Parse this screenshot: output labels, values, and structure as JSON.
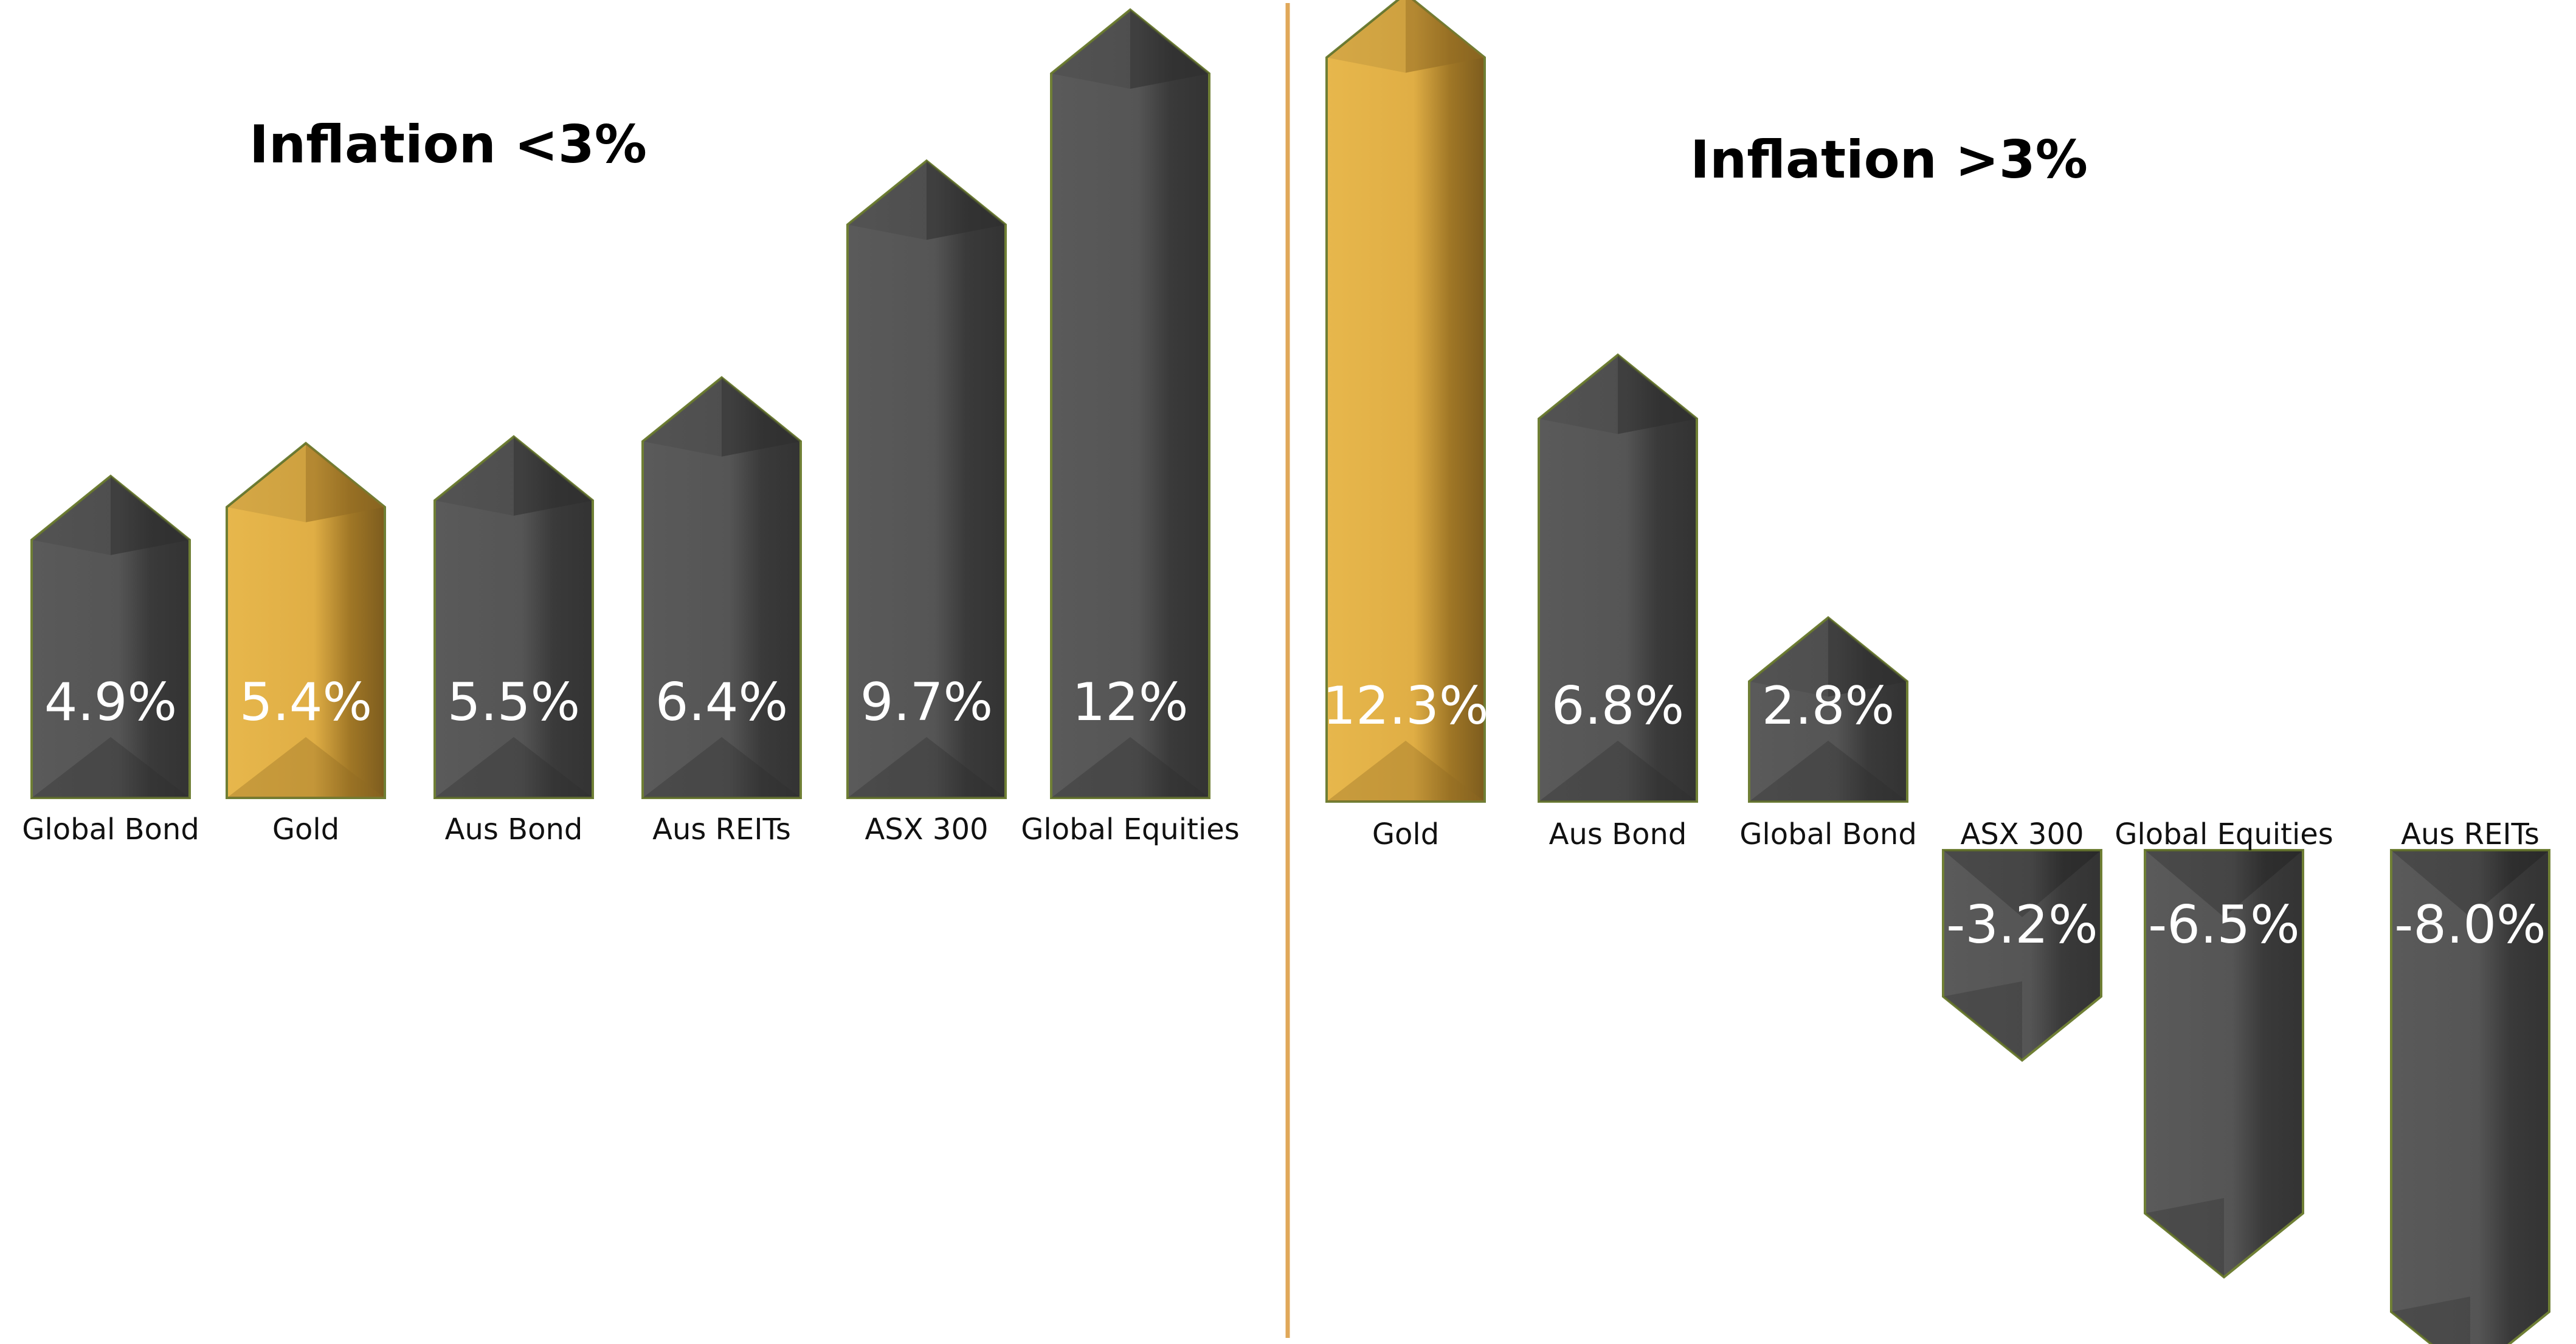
{
  "chart_data": [
    {
      "type": "bar",
      "title": "Inflation <3%",
      "categories": [
        "Global Bond",
        "Gold",
        "Aus Bond",
        "Aus REITs",
        "ASX 300",
        "Global Equities"
      ],
      "values": [
        4.9,
        5.4,
        5.5,
        6.4,
        9.7,
        12
      ],
      "value_labels": [
        "4.9%",
        "5.4%",
        "5.5%",
        "6.4%",
        "9.7%",
        "12%"
      ],
      "highlight_category": "Gold"
    },
    {
      "type": "bar",
      "title": "Inflation >3%",
      "categories": [
        "Gold",
        "Aus Bond",
        "Global Bond",
        "ASX 300",
        "Global Equities",
        "Aus REITs"
      ],
      "values": [
        12.3,
        6.8,
        2.8,
        -3.2,
        -6.5,
        -8.0
      ],
      "value_labels": [
        "12.3%",
        "6.8%",
        "2.8%",
        "-3.2%",
        "-6.5%",
        "-8.0%"
      ],
      "highlight_category": "Gold"
    }
  ],
  "colors": {
    "bar": "#4d4d4d",
    "bar_shadow": "#2e2e2e",
    "bar_highlight": "#e3b44a",
    "bar_highlight_shadow": "#8f6a22",
    "bar_outline": "#6f7f35",
    "divider": "#e0a85a",
    "text": "#111111",
    "value_text": "#ffffff"
  }
}
